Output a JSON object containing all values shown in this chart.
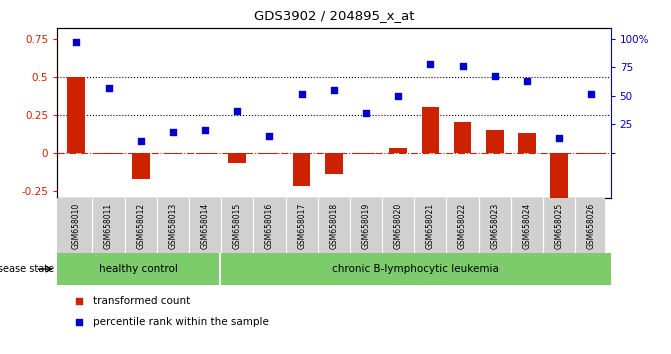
{
  "title": "GDS3902 / 204895_x_at",
  "samples": [
    "GSM658010",
    "GSM658011",
    "GSM658012",
    "GSM658013",
    "GSM658014",
    "GSM658015",
    "GSM658016",
    "GSM658017",
    "GSM658018",
    "GSM658019",
    "GSM658020",
    "GSM658021",
    "GSM658022",
    "GSM658023",
    "GSM658024",
    "GSM658025",
    "GSM658026"
  ],
  "transformed_count": [
    0.5,
    -0.01,
    -0.17,
    -0.01,
    -0.01,
    -0.07,
    -0.01,
    -0.22,
    -0.14,
    -0.01,
    0.03,
    0.3,
    0.2,
    0.15,
    0.13,
    -0.3,
    -0.01
  ],
  "percentile_rank": [
    97,
    57,
    10,
    18,
    20,
    37,
    15,
    52,
    55,
    35,
    50,
    78,
    76,
    67,
    63,
    13,
    52
  ],
  "healthy_control_count": 5,
  "group1_label": "healthy control",
  "group2_label": "chronic B-lymphocytic leukemia",
  "disease_state_label": "disease state",
  "red_color": "#CC2200",
  "blue_color": "#0000CC",
  "yticks_left": [
    -0.25,
    0.0,
    0.25,
    0.5,
    0.75
  ],
  "yticks_right": [
    0,
    25,
    50,
    75,
    100
  ],
  "hline_dotted_vals": [
    0.25,
    0.5
  ],
  "bar_width": 0.55,
  "legend_items": [
    "transformed count",
    "percentile rank within the sample"
  ],
  "background_gray": "#D0D0D0",
  "background_green": "#7CCC6C",
  "ymin": -0.3,
  "ymax": 0.82
}
